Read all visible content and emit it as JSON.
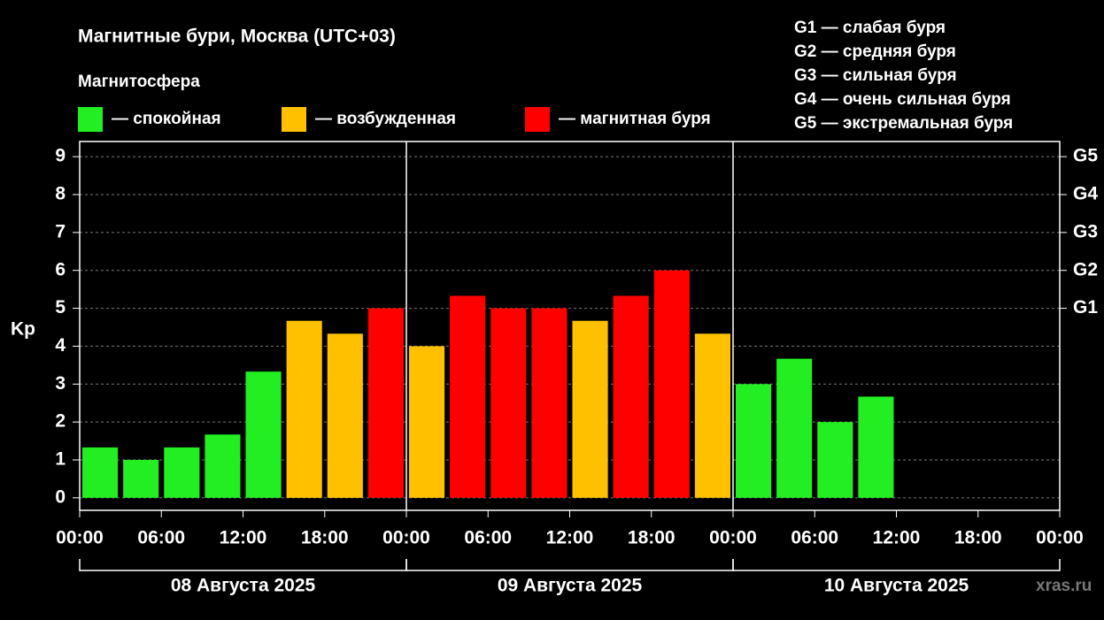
{
  "chart_data": {
    "type": "bar",
    "title": "Магнитные бури, Москва (UTC+03)",
    "legend_title": "Магнитосфера",
    "legend": [
      {
        "label": "— спокойная",
        "color": "#22ee22"
      },
      {
        "label": "— возбужденная",
        "color": "#ffc000"
      },
      {
        "label": "— магнитная буря",
        "color": "#ff0000"
      }
    ],
    "storm_scale": [
      "G1 — слабая буря",
      "G2 — средняя буря",
      "G3 — сильная буря",
      "G4 — очень сильная буря",
      "G5 — экстремальная буря"
    ],
    "y_label": "Kp",
    "x": [
      0,
      3,
      6,
      9,
      12,
      15,
      18,
      21,
      24,
      27,
      30,
      33,
      36,
      39,
      42,
      45,
      48,
      51,
      54,
      57
    ],
    "bar_width": 3,
    "values": [
      1.33,
      1.0,
      1.33,
      1.67,
      3.33,
      4.67,
      4.33,
      5.0,
      4.0,
      5.33,
      5.0,
      5.0,
      4.67,
      5.33,
      6.0,
      4.33,
      3.0,
      3.67,
      2.0,
      2.67
    ],
    "colors": [
      "#22ee22",
      "#22ee22",
      "#22ee22",
      "#22ee22",
      "#22ee22",
      "#ffc000",
      "#ffc000",
      "#ff0000",
      "#ffc000",
      "#ff0000",
      "#ff0000",
      "#ff0000",
      "#ffc000",
      "#ff0000",
      "#ff0000",
      "#ffc000",
      "#22ee22",
      "#22ee22",
      "#22ee22",
      "#22ee22"
    ],
    "xlim": [
      0,
      72
    ],
    "xticks": [
      {
        "value": 0,
        "label": "00:00"
      },
      {
        "value": 6,
        "label": "06:00"
      },
      {
        "value": 12,
        "label": "12:00"
      },
      {
        "value": 18,
        "label": "18:00"
      },
      {
        "value": 24,
        "label": "00:00"
      },
      {
        "value": 30,
        "label": "06:00"
      },
      {
        "value": 36,
        "label": "12:00"
      },
      {
        "value": 42,
        "label": "18:00"
      },
      {
        "value": 48,
        "label": "00:00"
      },
      {
        "value": 54,
        "label": "06:00"
      },
      {
        "value": 60,
        "label": "12:00"
      },
      {
        "value": 66,
        "label": "18:00"
      },
      {
        "value": 72,
        "label": "00:00"
      }
    ],
    "days": [
      {
        "label": "08 Августа 2025",
        "span": [
          0,
          24
        ]
      },
      {
        "label": "09 Августа 2025",
        "span": [
          24,
          48
        ]
      },
      {
        "label": "10 Августа 2025",
        "span": [
          48,
          72
        ]
      }
    ],
    "ylim": [
      -0.33,
      9.4
    ],
    "yticks": [
      0,
      1,
      2,
      3,
      4,
      5,
      6,
      7,
      8,
      9
    ],
    "y2lim": [
      -0.33,
      9.4
    ],
    "y2ticks": [
      {
        "value": 5,
        "label": "G1"
      },
      {
        "value": 6,
        "label": "G2"
      },
      {
        "value": 7,
        "label": "G3"
      },
      {
        "value": 8,
        "label": "G4"
      },
      {
        "value": 9,
        "label": "G5"
      }
    ],
    "grid": true,
    "watermark": "xras.ru"
  }
}
